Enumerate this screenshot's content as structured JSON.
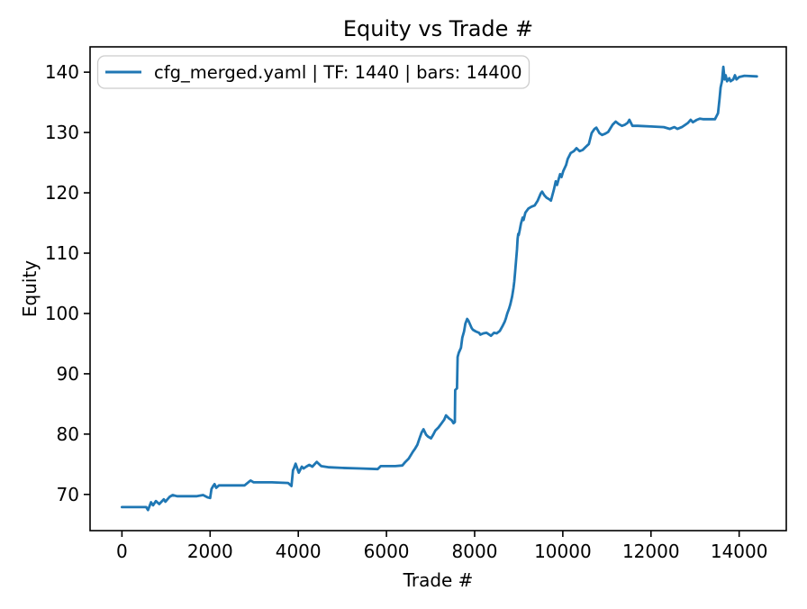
{
  "chart_data": {
    "type": "line",
    "title": "Equity vs Trade #",
    "xlabel": "Trade #",
    "ylabel": "Equity",
    "xlim": [
      -723,
      15069
    ],
    "ylim": [
      64.0,
      144.2
    ],
    "x_ticks": [
      0,
      2000,
      4000,
      6000,
      8000,
      10000,
      12000,
      14000
    ],
    "y_ticks": [
      70,
      80,
      90,
      100,
      110,
      120,
      130,
      140
    ],
    "grid": false,
    "legend_position": "upper-left",
    "frame_color": "#000000",
    "legend_border_color": "#cccccc",
    "series": [
      {
        "name": "cfg_merged.yaml | TF: 1440 | bars: 14400",
        "color": "#1f77b4",
        "points": [
          [
            0,
            67.9
          ],
          [
            80,
            67.9
          ],
          [
            550,
            67.9
          ],
          [
            590,
            67.4
          ],
          [
            660,
            68.7
          ],
          [
            705,
            68.2
          ],
          [
            770,
            68.9
          ],
          [
            845,
            68.4
          ],
          [
            950,
            69.2
          ],
          [
            985,
            68.8
          ],
          [
            1080,
            69.6
          ],
          [
            1150,
            69.9
          ],
          [
            1250,
            69.7
          ],
          [
            1700,
            69.7
          ],
          [
            1840,
            69.9
          ],
          [
            1950,
            69.5
          ],
          [
            2000,
            69.4
          ],
          [
            2030,
            70.9
          ],
          [
            2070,
            71.4
          ],
          [
            2100,
            71.7
          ],
          [
            2140,
            71.1
          ],
          [
            2200,
            71.5
          ],
          [
            2500,
            71.5
          ],
          [
            2780,
            71.5
          ],
          [
            2880,
            72.1
          ],
          [
            2920,
            72.3
          ],
          [
            2990,
            72.0
          ],
          [
            3400,
            72.0
          ],
          [
            3770,
            71.9
          ],
          [
            3845,
            71.4
          ],
          [
            3880,
            74.0
          ],
          [
            3905,
            74.4
          ],
          [
            3940,
            75.1
          ],
          [
            4010,
            73.6
          ],
          [
            4080,
            74.6
          ],
          [
            4120,
            74.3
          ],
          [
            4180,
            74.6
          ],
          [
            4250,
            74.9
          ],
          [
            4320,
            74.6
          ],
          [
            4420,
            75.4
          ],
          [
            4520,
            74.7
          ],
          [
            4700,
            74.5
          ],
          [
            5000,
            74.4
          ],
          [
            5400,
            74.3
          ],
          [
            5800,
            74.2
          ],
          [
            5870,
            74.7
          ],
          [
            6200,
            74.7
          ],
          [
            6360,
            74.8
          ],
          [
            6430,
            75.4
          ],
          [
            6500,
            75.9
          ],
          [
            6600,
            77.1
          ],
          [
            6650,
            77.6
          ],
          [
            6700,
            78.2
          ],
          [
            6750,
            79.3
          ],
          [
            6800,
            80.3
          ],
          [
            6840,
            80.8
          ],
          [
            6900,
            79.9
          ],
          [
            6940,
            79.6
          ],
          [
            7010,
            79.3
          ],
          [
            7060,
            79.9
          ],
          [
            7110,
            80.6
          ],
          [
            7180,
            81.1
          ],
          [
            7250,
            81.8
          ],
          [
            7310,
            82.4
          ],
          [
            7350,
            83.1
          ],
          [
            7420,
            82.6
          ],
          [
            7480,
            82.3
          ],
          [
            7520,
            81.8
          ],
          [
            7550,
            82.0
          ],
          [
            7560,
            87.3
          ],
          [
            7600,
            87.6
          ],
          [
            7615,
            92.8
          ],
          [
            7640,
            93.5
          ],
          [
            7690,
            94.3
          ],
          [
            7720,
            96.0
          ],
          [
            7760,
            97.0
          ],
          [
            7790,
            98.3
          ],
          [
            7830,
            99.1
          ],
          [
            7860,
            98.8
          ],
          [
            7930,
            97.6
          ],
          [
            7960,
            97.3
          ],
          [
            8030,
            97.0
          ],
          [
            8100,
            96.8
          ],
          [
            8130,
            96.5
          ],
          [
            8200,
            96.7
          ],
          [
            8270,
            96.8
          ],
          [
            8370,
            96.3
          ],
          [
            8440,
            96.8
          ],
          [
            8500,
            96.7
          ],
          [
            8570,
            97.1
          ],
          [
            8640,
            98.0
          ],
          [
            8680,
            98.6
          ],
          [
            8710,
            99.2
          ],
          [
            8740,
            100.0
          ],
          [
            8780,
            100.8
          ],
          [
            8810,
            101.5
          ],
          [
            8850,
            102.8
          ],
          [
            8880,
            104.2
          ],
          [
            8900,
            105.3
          ],
          [
            8920,
            107.0
          ],
          [
            8940,
            108.8
          ],
          [
            8960,
            110.6
          ],
          [
            8975,
            112.4
          ],
          [
            8990,
            113.2
          ],
          [
            9000,
            113.0
          ],
          [
            9020,
            113.7
          ],
          [
            9050,
            114.9
          ],
          [
            9090,
            115.9
          ],
          [
            9110,
            115.5
          ],
          [
            9150,
            116.7
          ],
          [
            9220,
            117.4
          ],
          [
            9290,
            117.7
          ],
          [
            9360,
            117.9
          ],
          [
            9430,
            118.7
          ],
          [
            9500,
            119.9
          ],
          [
            9530,
            120.2
          ],
          [
            9580,
            119.6
          ],
          [
            9630,
            119.2
          ],
          [
            9700,
            118.9
          ],
          [
            9730,
            118.7
          ],
          [
            9800,
            120.6
          ],
          [
            9840,
            121.9
          ],
          [
            9870,
            121.3
          ],
          [
            9910,
            122.4
          ],
          [
            9940,
            123.1
          ],
          [
            9970,
            122.6
          ],
          [
            10010,
            123.6
          ],
          [
            10075,
            124.6
          ],
          [
            10110,
            125.6
          ],
          [
            10180,
            126.6
          ],
          [
            10250,
            126.9
          ],
          [
            10310,
            127.4
          ],
          [
            10380,
            126.9
          ],
          [
            10450,
            127.1
          ],
          [
            10520,
            127.6
          ],
          [
            10590,
            128.1
          ],
          [
            10655,
            129.9
          ],
          [
            10720,
            130.6
          ],
          [
            10760,
            130.8
          ],
          [
            10830,
            129.9
          ],
          [
            10890,
            129.6
          ],
          [
            10960,
            129.8
          ],
          [
            11030,
            130.1
          ],
          [
            11130,
            131.3
          ],
          [
            11200,
            131.8
          ],
          [
            11270,
            131.4
          ],
          [
            11340,
            131.1
          ],
          [
            11410,
            131.3
          ],
          [
            11470,
            131.6
          ],
          [
            11510,
            132.1
          ],
          [
            11580,
            131.1
          ],
          [
            11700,
            131.1
          ],
          [
            12000,
            131.0
          ],
          [
            12290,
            130.9
          ],
          [
            12430,
            130.6
          ],
          [
            12530,
            130.9
          ],
          [
            12600,
            130.6
          ],
          [
            12700,
            130.9
          ],
          [
            12840,
            131.6
          ],
          [
            12900,
            132.1
          ],
          [
            12950,
            131.7
          ],
          [
            13040,
            132.1
          ],
          [
            13110,
            132.3
          ],
          [
            13180,
            132.2
          ],
          [
            13450,
            132.2
          ],
          [
            13520,
            133.2
          ],
          [
            13555,
            135.6
          ],
          [
            13580,
            137.5
          ],
          [
            13610,
            138.5
          ],
          [
            13640,
            140.9
          ],
          [
            13670,
            138.8
          ],
          [
            13695,
            139.5
          ],
          [
            13725,
            138.5
          ],
          [
            13775,
            139.0
          ],
          [
            13805,
            138.5
          ],
          [
            13865,
            138.8
          ],
          [
            13905,
            139.5
          ],
          [
            13940,
            138.8
          ],
          [
            14000,
            139.2
          ],
          [
            14120,
            139.4
          ],
          [
            14400,
            139.3
          ]
        ]
      }
    ]
  }
}
